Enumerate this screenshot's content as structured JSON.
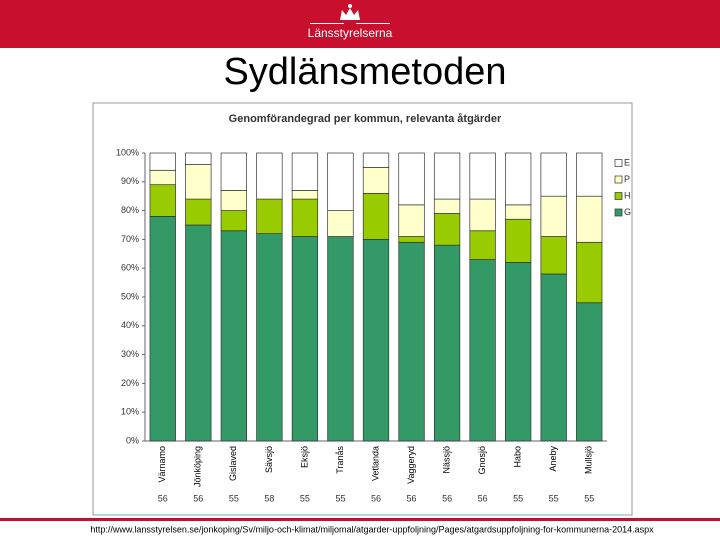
{
  "header": {
    "logo_text": "Länsstyrelserna"
  },
  "slide_title": "Sydlänsmetoden",
  "footer_url": "http://www.lansstyrelsen.se/jonkoping/Sv/miljo-och-klimat/miljomal/atgarder-uppfoljning/Pages/atgardsuppfoljning-for-kommunerna-2014.aspx",
  "chart_data": {
    "type": "stacked_bar",
    "title": "Genomförandegrad per kommun, relevanta åtgärder",
    "categories": [
      "Värnamo",
      "Jönköping",
      "Gislaved",
      "Sävsjö",
      "Eksjö",
      "Tranås",
      "Vetlanda",
      "Vaggeryd",
      "Nässjö",
      "Gnosjö",
      "Habo",
      "Aneby",
      "Mullsjö"
    ],
    "counts": [
      56,
      56,
      55,
      58,
      55,
      55,
      56,
      56,
      56,
      56,
      55,
      55,
      55
    ],
    "series": [
      {
        "name": "G",
        "color": "#339966",
        "values": [
          78,
          75,
          73,
          72,
          71,
          71,
          70,
          69,
          68,
          63,
          62,
          58,
          48
        ]
      },
      {
        "name": "H",
        "color": "#99cc00",
        "values": [
          11,
          9,
          7,
          12,
          13,
          0,
          16,
          2,
          11,
          10,
          15,
          13,
          21
        ]
      },
      {
        "name": "P",
        "color": "#ffffcc",
        "values": [
          5,
          12,
          7,
          0,
          3,
          9,
          9,
          11,
          5,
          11,
          5,
          14,
          16
        ]
      },
      {
        "name": "E",
        "color": "#ffffff",
        "values": [
          6,
          4,
          13,
          16,
          13,
          20,
          5,
          18,
          16,
          16,
          18,
          15,
          15
        ]
      }
    ],
    "ylim": [
      0,
      100
    ],
    "yticks": [
      {
        "value": 0,
        "label": "0%"
      },
      {
        "value": 10,
        "label": "10%"
      },
      {
        "value": 20,
        "label": "20%"
      },
      {
        "value": 30,
        "label": "30%"
      },
      {
        "value": 40,
        "label": "40%"
      },
      {
        "value": 50,
        "label": "50%"
      },
      {
        "value": 60,
        "label": "60%"
      },
      {
        "value": 70,
        "label": "70%"
      },
      {
        "value": 80,
        "label": "80%"
      },
      {
        "value": 90,
        "label": "90%"
      },
      {
        "value": 100,
        "label": "100%"
      }
    ],
    "legend_position": "right"
  }
}
